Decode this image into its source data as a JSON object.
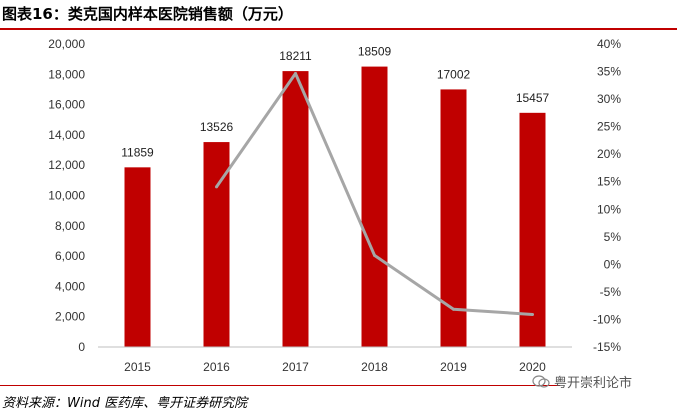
{
  "title": "图表16：类克国内样本医院销售额（万元）",
  "source": "资料来源：Wind 医药库、粤开证券研究院",
  "watermark": "粤开崇利论市",
  "chart_data": {
    "type": "bar",
    "categories": [
      "2015",
      "2016",
      "2017",
      "2018",
      "2019",
      "2020"
    ],
    "series": [
      {
        "values": [
          11859,
          13526,
          18211,
          18509,
          17002,
          15457
        ],
        "color": "#c00000",
        "axis": "left",
        "data_labels": true
      },
      {
        "type": "line",
        "values": [
          null,
          14.06,
          34.64,
          1.64,
          -8.14,
          -9.09
        ],
        "color": "#a6a6a6",
        "axis": "right"
      }
    ],
    "yleft": {
      "lim": [
        0,
        20000
      ],
      "ticks": [
        0,
        2000,
        4000,
        6000,
        8000,
        10000,
        12000,
        14000,
        16000,
        18000,
        20000
      ],
      "tick_labels": [
        "0",
        "2,000",
        "4,000",
        "6,000",
        "8,000",
        "10,000",
        "12,000",
        "14,000",
        "16,000",
        "18,000",
        "20,000"
      ]
    },
    "yright": {
      "lim": [
        -15,
        40
      ],
      "ticks": [
        -15,
        -10,
        -5,
        0,
        5,
        10,
        15,
        20,
        25,
        30,
        35,
        40
      ],
      "tick_labels": [
        "-15%",
        "-10%",
        "-5%",
        "0%",
        "5%",
        "10%",
        "15%",
        "20%",
        "25%",
        "30%",
        "35%",
        "40%"
      ]
    },
    "grid": false,
    "legend": "none"
  }
}
